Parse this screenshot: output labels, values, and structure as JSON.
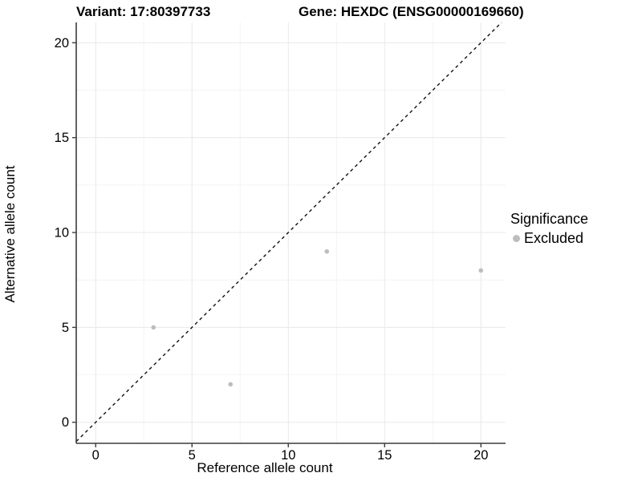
{
  "chart_data": {
    "type": "scatter",
    "title_left": "Variant: 17:80397733",
    "title_right": "Gene: HEXDC (ENSG00000169660)",
    "xlabel": "Reference allele count",
    "ylabel": "Alternative allele count",
    "xlim": [
      -1.01,
      21.28
    ],
    "ylim": [
      -1.11,
      21.07
    ],
    "x_ticks": [
      0,
      5,
      10,
      15,
      20
    ],
    "y_ticks": [
      0,
      5,
      10,
      15,
      20
    ],
    "x_minor_ticks": [
      2.5,
      7.5,
      12.5,
      17.5
    ],
    "y_minor_ticks": [
      2.5,
      7.5,
      12.5,
      17.5
    ],
    "grid": true,
    "legend_position": "right",
    "legend": {
      "title": "Significance",
      "items": [
        {
          "label": "Excluded",
          "color": "#bdbdbd"
        }
      ]
    },
    "series": [
      {
        "name": "Excluded",
        "color": "#bdbdbd",
        "points": [
          [
            3,
            5
          ],
          [
            7,
            2
          ],
          [
            12,
            9
          ],
          [
            20,
            8
          ]
        ]
      }
    ],
    "reference_line": {
      "type": "identity",
      "style": "dashed",
      "color": "#111111"
    }
  },
  "style": {
    "point_radius": 2.8,
    "major_grid_color": "#e8e8e8",
    "minor_grid_color": "#f4f4f4",
    "axis_color": "#3c3c3c",
    "tick_label_color": "#000000"
  }
}
